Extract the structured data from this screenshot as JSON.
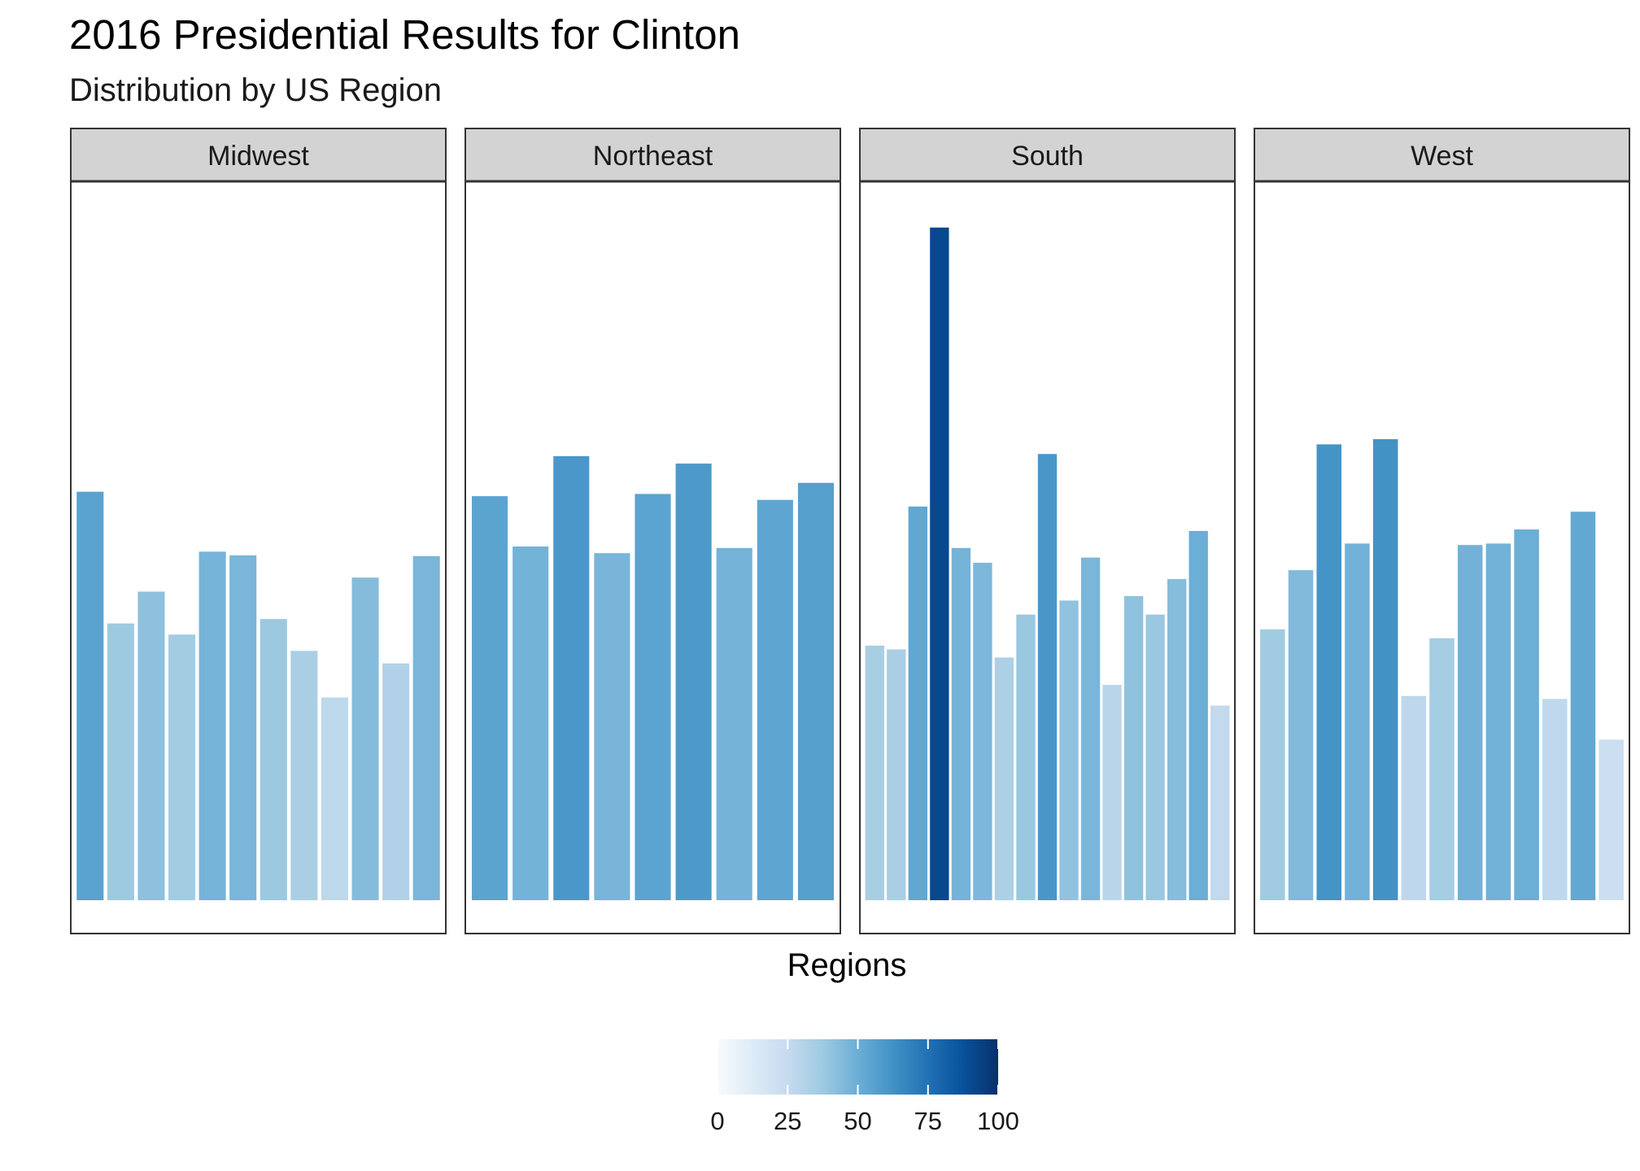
{
  "chart_data": {
    "type": "bar",
    "title": "2016 Presidential Results for Clinton",
    "subtitle": "Distribution by US Region",
    "xlabel": "Regions",
    "ylabel": "",
    "ylim": [
      0,
      93
    ],
    "facets": [
      {
        "name": "Midwest",
        "values": [
          55.2,
          37.4,
          41.7,
          35.9,
          47.1,
          46.6,
          38.0,
          33.7,
          27.4,
          43.6,
          32.0,
          46.5
        ]
      },
      {
        "name": "Northeast",
        "values": [
          54.6,
          47.8,
          60.0,
          46.9,
          54.9,
          59.0,
          47.6,
          54.1,
          56.4
        ]
      },
      {
        "name": "South",
        "values": [
          34.4,
          33.9,
          53.2,
          90.9,
          47.6,
          45.6,
          32.8,
          38.6,
          60.3,
          40.5,
          46.3,
          29.1,
          41.1,
          38.6,
          43.4,
          49.9,
          26.3
        ]
      },
      {
        "name": "West",
        "values": [
          36.6,
          44.6,
          61.6,
          48.2,
          62.3,
          27.6,
          35.4,
          48.0,
          48.2,
          50.1,
          27.2,
          52.5,
          21.7
        ]
      }
    ],
    "legend": {
      "title": "",
      "position": "bottom",
      "ticks": [
        "0",
        "25",
        "50",
        "75",
        "100"
      ],
      "range": [
        0,
        100
      ],
      "colors": [
        "#f7fbff",
        "#deebf7",
        "#c6dbef",
        "#9ecae1",
        "#6baed6",
        "#4292c6",
        "#2171b5",
        "#08519c",
        "#08306b"
      ]
    },
    "grid": false,
    "strip_color": "#d3d3d3",
    "panel_border_color": "#333333"
  }
}
